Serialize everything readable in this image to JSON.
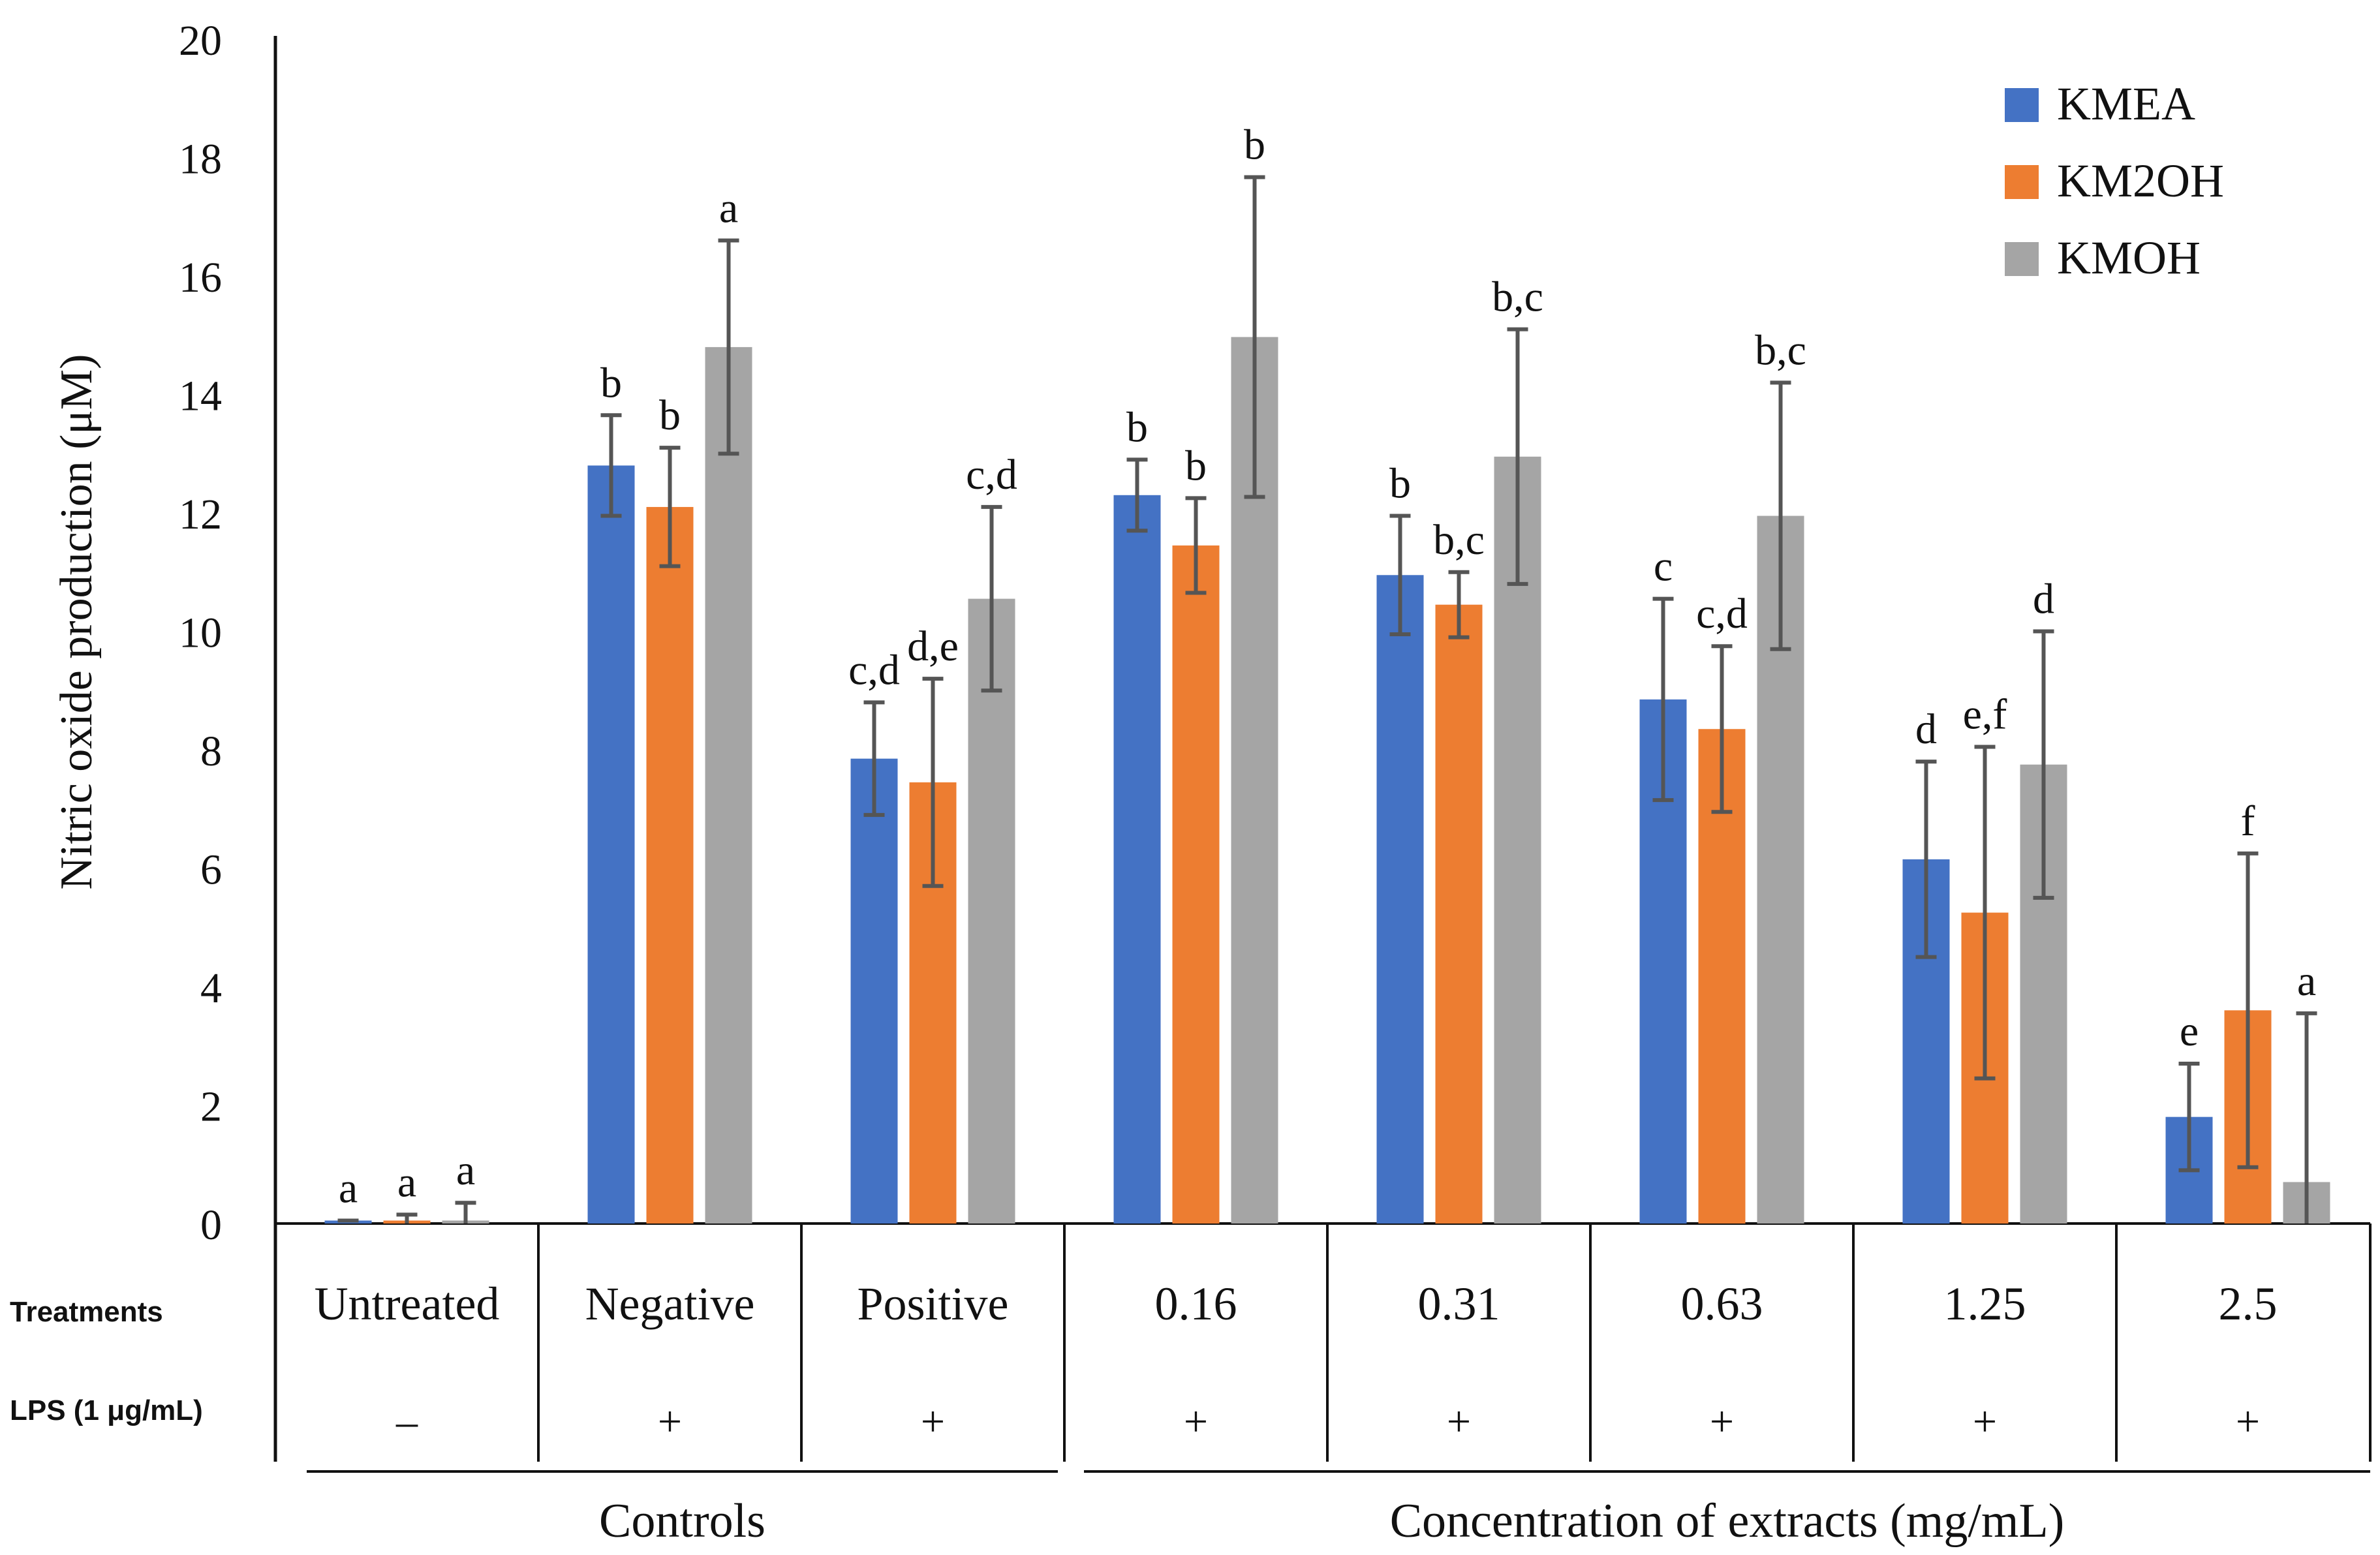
{
  "chart_data": {
    "type": "bar",
    "ylabel": "Nitric oxide production (μM)",
    "ylim": [
      0,
      20
    ],
    "yticks": [
      0,
      2,
      4,
      6,
      8,
      10,
      12,
      14,
      16,
      18,
      20
    ],
    "grid": false,
    "legend_position": "top-right",
    "categories": [
      "Untreated",
      "Negative",
      "Positive",
      "0.16",
      "0.31",
      "0.63",
      "1.25",
      "2.5"
    ],
    "row_labels": {
      "treatments": "Treatments",
      "lps": "LPS (1 μg/mL)"
    },
    "lps": [
      "–",
      "+",
      "+",
      "+",
      "+",
      "+",
      "+",
      "+"
    ],
    "groups": [
      {
        "label": "Controls",
        "from": 0,
        "to": 2
      },
      {
        "label": "Concentration of extracts (mg/mL)",
        "from": 3,
        "to": 7
      }
    ],
    "series": [
      {
        "name": "KMEA",
        "color": "#4472C4",
        "values": [
          0.05,
          12.8,
          7.85,
          12.3,
          10.95,
          8.85,
          6.15,
          1.8
        ],
        "errors": [
          0.0,
          0.85,
          0.95,
          0.6,
          1.0,
          1.7,
          1.65,
          0.9
        ],
        "letters": [
          "a",
          "b",
          "c,d",
          "b",
          "b",
          "c",
          "d",
          "e"
        ]
      },
      {
        "name": "KM2OH",
        "color": "#ED7D31",
        "values": [
          0.05,
          12.1,
          7.45,
          11.45,
          10.45,
          8.35,
          5.25,
          3.6
        ],
        "errors": [
          0.1,
          1.0,
          1.75,
          0.8,
          0.55,
          1.4,
          2.8,
          2.65
        ],
        "letters": [
          "a",
          "b",
          "d,e",
          "b",
          "b,c",
          "c,d",
          "e,f",
          "f"
        ]
      },
      {
        "name": "KMOH",
        "color": "#A5A5A5",
        "values": [
          0.05,
          14.8,
          10.55,
          14.97,
          12.95,
          11.95,
          7.75,
          0.7
        ],
        "errors": [
          0.3,
          1.8,
          1.55,
          2.7,
          2.15,
          2.25,
          2.25,
          2.85
        ],
        "letters": [
          "a",
          "a",
          "c,d",
          "b",
          "b,c",
          "b,c",
          "d",
          "a"
        ]
      }
    ]
  }
}
